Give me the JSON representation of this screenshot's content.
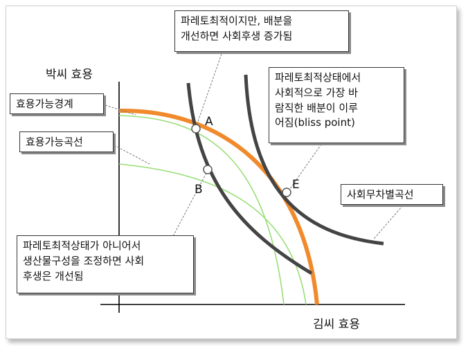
{
  "axes": {
    "y_label": "박씨 효용",
    "x_label": "김씨 효용"
  },
  "points": {
    "A": "A",
    "B": "B",
    "E": "E"
  },
  "callouts": {
    "top": "파레토최적이지만,  배분을\n개선하면 사회후생 증가됨",
    "bliss": "파레토최적상태에서\n사회적으로 가장 바\n람직한 배분이 이루\n어짐(bliss point)",
    "utility_frontier": "효용가능경계",
    "utility_curve": "효용가능곡선",
    "indifference": "사회무차별곡선",
    "bottom": "파레토최적상태가  아니어서\n생산물구성을 조정하면 사회\n후생은 개선됨"
  },
  "colors": {
    "frontier": "#F08A2C",
    "possibility_curves": "#99DD77",
    "indifference_curves": "#444444",
    "axes": "#000000"
  }
}
